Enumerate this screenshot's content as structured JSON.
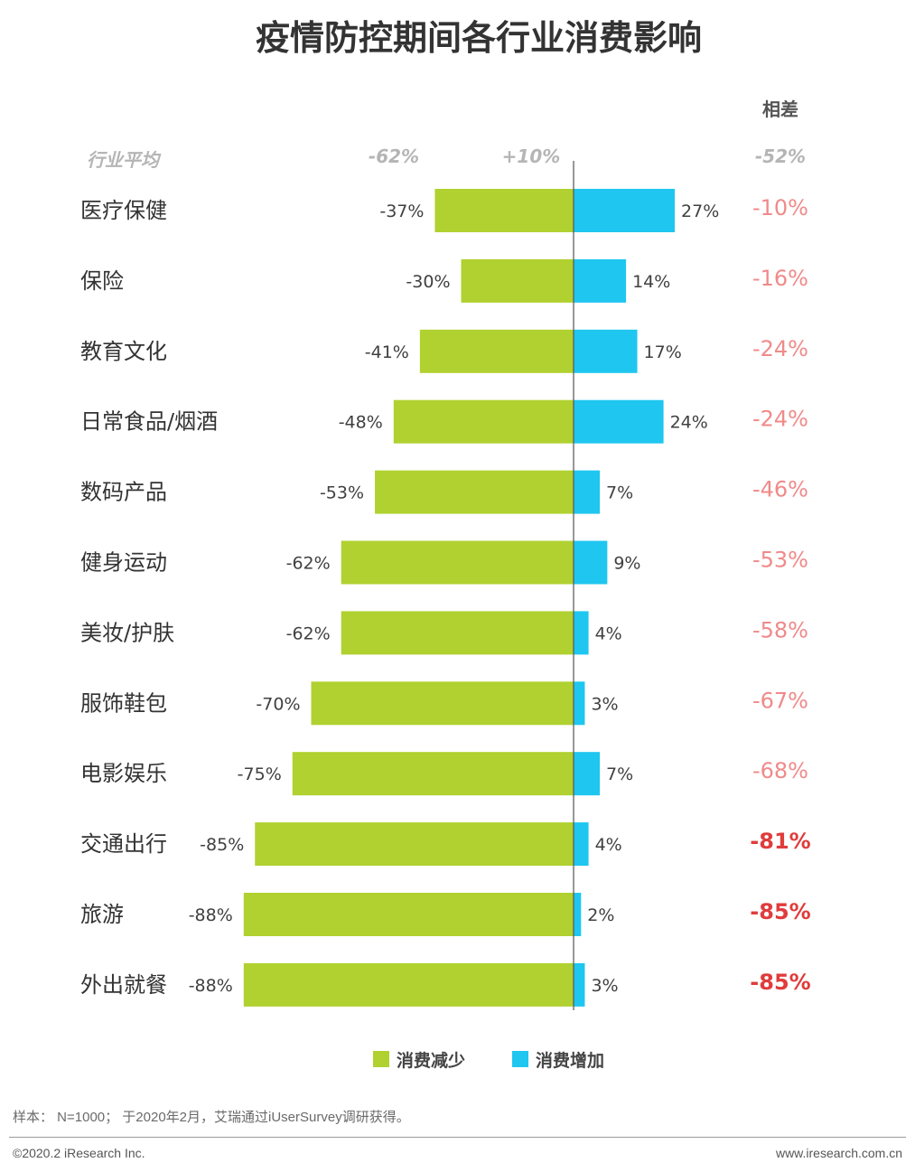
{
  "chart_data": {
    "type": "bar",
    "title": "疫情防控期间各行业消费影响",
    "categories": [
      "医疗保健",
      "保险",
      "教育文化",
      "日常食品/烟酒",
      "数码产品",
      "健身运动",
      "美妆/护肤",
      "服饰鞋包",
      "电影娱乐",
      "交通出行",
      "旅游",
      "外出就餐"
    ],
    "series": [
      {
        "name": "消费减少",
        "color": "#b0d130",
        "values": [
          -37,
          -30,
          -41,
          -48,
          -53,
          -62,
          -62,
          -70,
          -75,
          -85,
          -88,
          -88
        ],
        "labels": [
          "-37%",
          "-30%",
          "-41%",
          "-48%",
          "-53%",
          "-62%",
          "-62%",
          "-70%",
          "-75%",
          "-85%",
          "-88%",
          "-88%"
        ]
      },
      {
        "name": "消费增加",
        "color": "#1fc6f0",
        "values": [
          27,
          14,
          17,
          24,
          7,
          9,
          4,
          3,
          7,
          4,
          2,
          3
        ],
        "labels": [
          "27%",
          "14%",
          "17%",
          "24%",
          "7%",
          "9%",
          "4%",
          "3%",
          "7%",
          "4%",
          "2%",
          "3%"
        ]
      }
    ],
    "difference": {
      "header": "相差",
      "values": [
        -10,
        -16,
        -24,
        -24,
        -46,
        -53,
        -58,
        -67,
        -68,
        -81,
        -85,
        -85
      ],
      "labels": [
        "-10%",
        "-16%",
        "-24%",
        "-24%",
        "-46%",
        "-53%",
        "-58%",
        "-67%",
        "-68%",
        "-81%",
        "-85%",
        "-85%"
      ],
      "colors": [
        "#f08a8a",
        "#f08a8a",
        "#f08a8a",
        "#f08a8a",
        "#f08a8a",
        "#f08a8a",
        "#f08a8a",
        "#f08a8a",
        "#f08a8a",
        "#e03c3c",
        "#e03c3c",
        "#e03c3c"
      ]
    },
    "industry_average": {
      "label": "行业平均",
      "decrease": "-62%",
      "increase": "+10%",
      "difference": "-52%"
    },
    "legend": {
      "position": "bottom",
      "items": [
        "消费减少",
        "消费增加"
      ]
    }
  },
  "footer": {
    "source": "样本： N=1000； 于2020年2月，艾瑞通过iUserSurvey调研获得。",
    "copyright": "©2020.2 iResearch Inc.",
    "website": "www.iresearch.com.cn"
  }
}
